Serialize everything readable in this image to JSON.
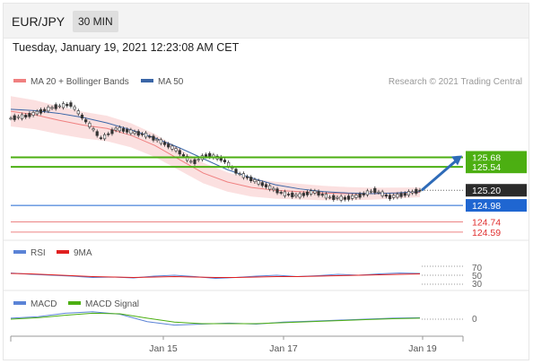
{
  "header": {
    "symbol": "EUR/JPY",
    "timeframe": "30 MIN",
    "datetime": "Tuesday, January 19, 2021 12:23:08 AM CET"
  },
  "price_panel": {
    "legend": [
      {
        "label": "MA 20 + Bollinger Bands",
        "color": "#f08080"
      },
      {
        "label": "MA 50",
        "color": "#3a66a7"
      }
    ],
    "credit": "Research © 2021 Trading Central",
    "levels": [
      {
        "value": 125.68,
        "label": "125.68",
        "kind": "resistance",
        "color": "#4caf12"
      },
      {
        "value": 125.54,
        "label": "125.54",
        "kind": "resistance",
        "color": "#4caf12"
      },
      {
        "value": 125.2,
        "label": "125.20",
        "kind": "last",
        "color": "#333333"
      },
      {
        "value": 124.98,
        "label": "124.98",
        "kind": "pivot",
        "color": "#1f66d1"
      },
      {
        "value": 124.74,
        "label": "124.74",
        "kind": "support",
        "color": "#e03030"
      },
      {
        "value": 124.59,
        "label": "124.59",
        "kind": "support",
        "color": "#e03030"
      }
    ]
  },
  "rsi_panel": {
    "legend": [
      {
        "label": "RSI",
        "color": "#5b83d6"
      },
      {
        "label": "9MA",
        "color": "#e02020"
      }
    ],
    "levels": [
      "70",
      "50",
      "30"
    ]
  },
  "macd_panel": {
    "legend": [
      {
        "label": "MACD",
        "color": "#5b83d6"
      },
      {
        "label": "MACD Signal",
        "color": "#4caf12"
      }
    ],
    "zero_label": "0"
  },
  "x_axis": {
    "ticks": [
      "Jan 15",
      "Jan 17",
      "Jan 19"
    ]
  },
  "chart_data": {
    "type": "line",
    "title": "EUR/JPY 30 MIN",
    "series": [
      {
        "name": "MA 20 + Bollinger Bands",
        "values": [
          126.35,
          126.3,
          126.22,
          126.15,
          126.1,
          126.0,
          125.85,
          125.65,
          125.45,
          125.32,
          125.24,
          125.2,
          125.18,
          125.16,
          125.15,
          125.15,
          125.16,
          125.17
        ]
      },
      {
        "name": "MA 50",
        "values": [
          126.38,
          126.36,
          126.32,
          126.26,
          126.18,
          126.08,
          125.96,
          125.82,
          125.66,
          125.5,
          125.38,
          125.28,
          125.22,
          125.18,
          125.16,
          125.15,
          125.16,
          125.18
        ]
      }
    ],
    "price_path": [
      126.25,
      126.28,
      126.35,
      126.42,
      126.45,
      126.2,
      125.95,
      126.1,
      126.05,
      126.0,
      125.9,
      125.78,
      125.6,
      125.72,
      125.65,
      125.45,
      125.35,
      125.25,
      125.15,
      125.12,
      125.18,
      125.1,
      125.08,
      125.12,
      125.2,
      125.1,
      125.14,
      125.2
    ],
    "rsi": [
      55,
      52,
      50,
      48,
      45,
      46,
      44,
      48,
      50,
      47,
      43,
      45,
      48,
      50,
      47,
      49,
      52,
      50,
      53,
      55,
      54
    ],
    "rsi_9ma": [
      54,
      53,
      51,
      49,
      47,
      46,
      45,
      46,
      47,
      46,
      45,
      45,
      46,
      47,
      47,
      48,
      49,
      50,
      51,
      52,
      53
    ],
    "macd": [
      0.02,
      0.05,
      0.12,
      0.15,
      0.1,
      -0.05,
      -0.12,
      -0.1,
      -0.08,
      -0.1,
      -0.06,
      -0.04,
      -0.02,
      0.0,
      0.02,
      0.03
    ],
    "macd_signal": [
      0.0,
      0.03,
      0.08,
      0.12,
      0.11,
      0.02,
      -0.06,
      -0.09,
      -0.09,
      -0.09,
      -0.07,
      -0.05,
      -0.03,
      -0.01,
      0.01,
      0.02
    ],
    "projection": {
      "from": 125.2,
      "to": 125.68
    }
  }
}
